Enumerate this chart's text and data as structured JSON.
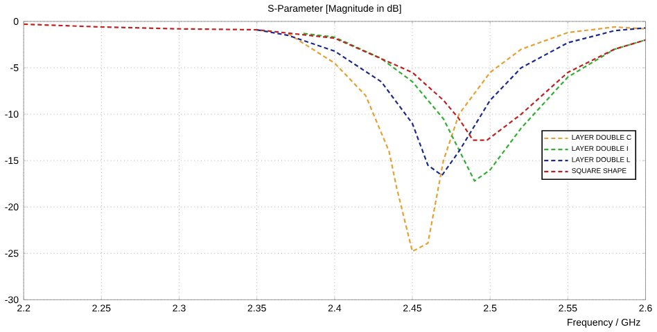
{
  "chart_data": {
    "type": "line",
    "title": "S-Parameter [Magnitude in dB]",
    "xlabel": "Frequency / GHz",
    "xlim": [
      2.2,
      2.6
    ],
    "xticks": [
      2.2,
      2.25,
      2.3,
      2.35,
      2.4,
      2.45,
      2.5,
      2.55,
      2.6
    ],
    "ylim": [
      -30,
      0
    ],
    "yticks": [
      -30,
      -25,
      -20,
      -15,
      -10,
      -5,
      0
    ],
    "grid": true,
    "legend": "right",
    "line_style": "dashed",
    "marker": "none",
    "series": [
      {
        "name": "LAYER DOUBLE C",
        "color": "#e8a030",
        "x": [
          2.37,
          2.4,
          2.42,
          2.435,
          2.44,
          2.45,
          2.46,
          2.47,
          2.48,
          2.5,
          2.52,
          2.55,
          2.58,
          2.6
        ],
        "values": [
          -1.3,
          -4.5,
          -8,
          -14,
          -18,
          -24.8,
          -23.9,
          -15,
          -10,
          -5.5,
          -3,
          -1.2,
          -0.6,
          -0.8
        ]
      },
      {
        "name": "LAYER DOUBLE I",
        "color": "#30b030",
        "x": [
          2.38,
          2.4,
          2.43,
          2.45,
          2.47,
          2.49,
          2.5,
          2.52,
          2.55,
          2.58,
          2.6
        ],
        "values": [
          -1.3,
          -1.7,
          -4,
          -6.5,
          -10.5,
          -17.2,
          -16,
          -11.5,
          -6,
          -3,
          -2
        ]
      },
      {
        "name": "LAYER DOUBLE L",
        "color": "#1a2a90",
        "x": [
          2.35,
          2.37,
          2.4,
          2.43,
          2.45,
          2.46,
          2.469,
          2.48,
          2.5,
          2.52,
          2.55,
          2.58,
          2.6
        ],
        "values": [
          -0.9,
          -1.5,
          -3.2,
          -6.5,
          -11,
          -15.5,
          -16.6,
          -14,
          -8.5,
          -5,
          -2.3,
          -1,
          -0.7
        ]
      },
      {
        "name": "SQUARE SHAPE",
        "color": "#c02020",
        "x": [
          2.2,
          2.25,
          2.3,
          2.35,
          2.4,
          2.45,
          2.47,
          2.48,
          2.489,
          2.498,
          2.52,
          2.55,
          2.58,
          2.6
        ],
        "values": [
          -0.3,
          -0.6,
          -0.8,
          -0.9,
          -1.8,
          -5.5,
          -8.5,
          -10.5,
          -12.8,
          -12.8,
          -10,
          -5.5,
          -3,
          -2
        ]
      }
    ]
  }
}
